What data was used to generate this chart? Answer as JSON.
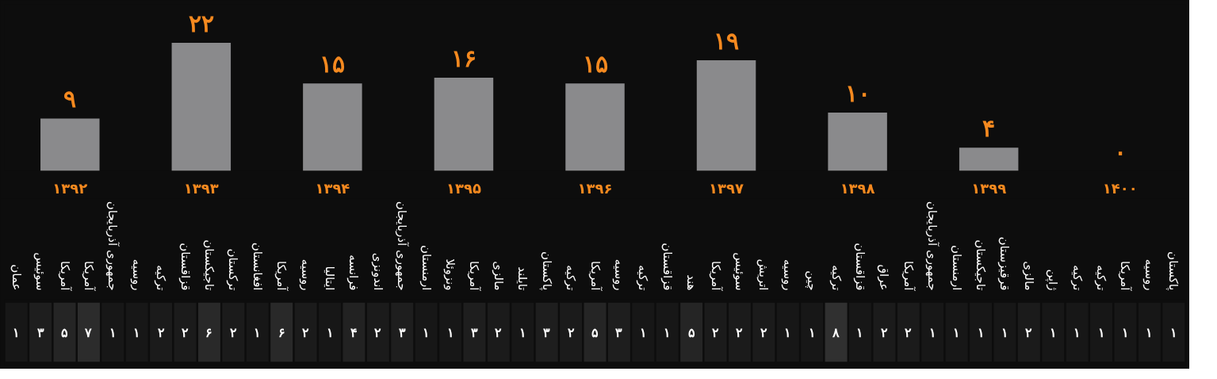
{
  "chart_data": [
    {
      "type": "bar",
      "categories": [
        "۱۳۹۲",
        "۱۳۹۳",
        "۱۳۹۴",
        "۱۳۹۵",
        "۱۳۹۶",
        "۱۳۹۷",
        "۱۳۹۸",
        "۱۳۹۹",
        "۱۴۰۰"
      ],
      "values": [
        9,
        22,
        15,
        16,
        15,
        19,
        10,
        4,
        0
      ],
      "color": "#8a8a8c",
      "value_labels": [
        "۹",
        "۲۲",
        "۱۵",
        "۱۶",
        "۱۵",
        "۱۹",
        "۱۰",
        "۴",
        "۰"
      ],
      "tick_labels": "x",
      "grid": false
    },
    {
      "type": "heatmap",
      "categories": [
        "عمان",
        "سوئیس",
        "آمریکا",
        "آمریکا",
        "جمهوری آذربایجان",
        "روسیه",
        "ترکیه",
        "قزاقستان",
        "تاجیکستان",
        "ترکستان",
        "افغانستان",
        "آمریکا",
        "روسیه",
        "ایتالیا",
        "فرانسه",
        "اندونزی",
        "جمهوری آذربایجان",
        "ارمنستان",
        "ونزوئلا",
        "آمریکا",
        "مالزی",
        "تایلند",
        "پاکستان",
        "ترکیه",
        "آمریکا",
        "روسیه",
        "ترکیه",
        "قزاقستان",
        "هند",
        "آمریکا",
        "سوئیس",
        "اتریش",
        "روسیه",
        "چین",
        "ترکیه",
        "قزاقستان",
        "عراق",
        "آمریکا",
        "جمهوری آذربایجان",
        "ارمنستان",
        "تاجیکستان",
        "قرقیزستان",
        "مالزی",
        "ژاپن",
        "ترکیه",
        "ترکیه",
        "آمریکا",
        "روسیه",
        "پاکستان"
      ],
      "y_categories": [
        null
      ],
      "cell_labels": [
        [
          "۱",
          "۳",
          "۵",
          "۷",
          "۱",
          "۱",
          "۲",
          "۲",
          "۶",
          "۲",
          "۱",
          "۶",
          "۲",
          "۱",
          "۴",
          "۲",
          "۳",
          "۱",
          "۱",
          "۳",
          "۲",
          "۱",
          "۳",
          "۲",
          "۵",
          "۳",
          "۱",
          "۱",
          "۵",
          "۲",
          "۲",
          "۲",
          "۱",
          "۱",
          "۸",
          "۱",
          "۲",
          "۲",
          "۱",
          "۱",
          "۱",
          "۱",
          "۲",
          "۱",
          "۱",
          "۱",
          "۱",
          "۱",
          "۱"
        ]
      ],
      "cells": [
        [
          1,
          3,
          5,
          7,
          1,
          1,
          2,
          2,
          6,
          2,
          1,
          6,
          2,
          1,
          4,
          2,
          3,
          1,
          1,
          3,
          2,
          1,
          3,
          2,
          5,
          3,
          1,
          1,
          5,
          2,
          2,
          2,
          1,
          1,
          8,
          1,
          2,
          2,
          1,
          1,
          1,
          1,
          2,
          1,
          1,
          1,
          1,
          1,
          1
        ]
      ],
      "tick_labels": "x"
    }
  ]
}
